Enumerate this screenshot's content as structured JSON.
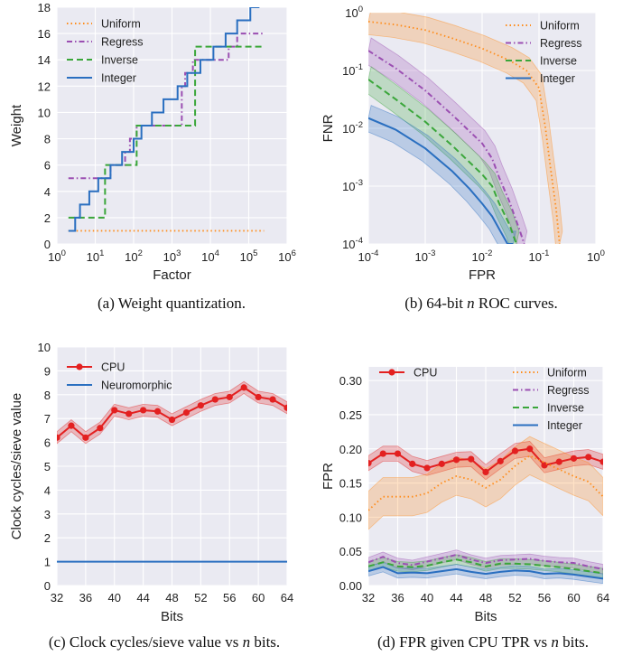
{
  "colors": {
    "uniform": "#ff8c1a",
    "regress": "#9b4fb2",
    "inverse": "#3aa63a",
    "integer": "#2a6fc0",
    "cpu": "#e32020",
    "neuromorphic": "#2a6fc0"
  },
  "chart_data": [
    {
      "id": "a",
      "type": "line",
      "caption": "(a) Weight quantization.",
      "xlabel": "Factor",
      "ylabel": "Weight",
      "xscale": "log",
      "xlim": [
        1,
        1000000
      ],
      "ylim": [
        0,
        18
      ],
      "xticks": [
        1,
        10,
        100,
        1000,
        10000,
        100000,
        1000000
      ],
      "xtick_labels": [
        {
          "b": "10",
          "e": "0"
        },
        {
          "b": "10",
          "e": "1"
        },
        {
          "b": "10",
          "e": "2"
        },
        {
          "b": "10",
          "e": "3"
        },
        {
          "b": "10",
          "e": "4"
        },
        {
          "b": "10",
          "e": "5"
        },
        {
          "b": "10",
          "e": "6"
        }
      ],
      "yticks": [
        0,
        2,
        4,
        6,
        8,
        10,
        12,
        14,
        16,
        18
      ],
      "ytick_labels": [
        "0",
        "2",
        "4",
        "6",
        "8",
        "10",
        "12",
        "14",
        "16",
        "18"
      ],
      "legend_position": "top-left",
      "series": [
        {
          "name": "Uniform",
          "style": "dotted",
          "steps": [
            [
              2,
              1
            ],
            [
              250000,
              1
            ]
          ]
        },
        {
          "name": "Regress",
          "style": "dashdot",
          "steps": [
            [
              2,
              5
            ],
            [
              20,
              5
            ],
            [
              25,
              6
            ],
            [
              50,
              6
            ],
            [
              60,
              7
            ],
            [
              70,
              7
            ],
            [
              80,
              8
            ],
            [
              100,
              8
            ],
            [
              120,
              9
            ],
            [
              150,
              9
            ],
            [
              200,
              9
            ],
            [
              300,
              9
            ],
            [
              1500,
              9
            ],
            [
              1800,
              12
            ],
            [
              2200,
              13
            ],
            [
              3000,
              13
            ],
            [
              3500,
              14
            ],
            [
              5000,
              14
            ],
            [
              8000,
              14
            ],
            [
              15000,
              14
            ],
            [
              30000,
              15
            ],
            [
              40000,
              15
            ],
            [
              50000,
              16
            ],
            [
              250000,
              16
            ]
          ]
        },
        {
          "name": "Inverse",
          "style": "dashed",
          "steps": [
            [
              2,
              2
            ],
            [
              15,
              2
            ],
            [
              18,
              6
            ],
            [
              30,
              6
            ],
            [
              100,
              6
            ],
            [
              120,
              9
            ],
            [
              300,
              9
            ],
            [
              1000,
              9
            ],
            [
              2500,
              9
            ],
            [
              4000,
              15
            ],
            [
              10000,
              15
            ],
            [
              250000,
              15
            ]
          ]
        },
        {
          "name": "Integer",
          "style": "solid",
          "steps": [
            [
              2,
              1
            ],
            [
              3,
              2
            ],
            [
              4,
              3
            ],
            [
              6,
              3
            ],
            [
              7,
              4
            ],
            [
              10,
              4
            ],
            [
              12,
              5
            ],
            [
              20,
              5
            ],
            [
              25,
              6
            ],
            [
              45,
              6
            ],
            [
              50,
              7
            ],
            [
              80,
              7
            ],
            [
              100,
              8
            ],
            [
              130,
              8
            ],
            [
              160,
              9
            ],
            [
              250,
              9
            ],
            [
              300,
              10
            ],
            [
              400,
              10
            ],
            [
              600,
              11
            ],
            [
              1000,
              11
            ],
            [
              1400,
              12
            ],
            [
              2000,
              12
            ],
            [
              2500,
              13
            ],
            [
              4000,
              13
            ],
            [
              5500,
              14
            ],
            [
              9000,
              14
            ],
            [
              12000,
              15
            ],
            [
              20000,
              15
            ],
            [
              25000,
              16
            ],
            [
              40000,
              16
            ],
            [
              50000,
              17
            ],
            [
              90000,
              17
            ],
            [
              110000,
              18
            ],
            [
              150000,
              18
            ],
            [
              190000,
              18
            ]
          ]
        }
      ]
    },
    {
      "id": "b",
      "type": "line",
      "caption": "(b) 64-bit n ROC curves.",
      "xlabel": "FPR",
      "ylabel": "FNR",
      "xscale": "log",
      "yscale": "log",
      "xlim": [
        0.0001,
        1
      ],
      "ylim": [
        0.0001,
        1
      ],
      "xticks": [
        0.0001,
        0.001,
        0.01,
        0.1,
        1
      ],
      "xtick_labels": [
        {
          "b": "10",
          "e": "-4"
        },
        {
          "b": "10",
          "e": "-3"
        },
        {
          "b": "10",
          "e": "-2"
        },
        {
          "b": "10",
          "e": "-1"
        },
        {
          "b": "10",
          "e": "0"
        }
      ],
      "yticks": [
        0.0001,
        0.001,
        0.01,
        0.1,
        1
      ],
      "ytick_labels": [
        {
          "b": "10",
          "e": "-4"
        },
        {
          "b": "10",
          "e": "-3"
        },
        {
          "b": "10",
          "e": "-2"
        },
        {
          "b": "10",
          "e": "-1"
        },
        {
          "b": "10",
          "e": "0"
        }
      ],
      "legend_position": "top-right",
      "series": [
        {
          "name": "Uniform",
          "style": "dotted",
          "band": true,
          "x": [
            0.0001,
            0.0003,
            0.001,
            0.003,
            0.01,
            0.03,
            0.06,
            0.1,
            0.13,
            0.16,
            0.2,
            0.23
          ],
          "y": [
            0.7,
            0.62,
            0.5,
            0.36,
            0.24,
            0.15,
            0.1,
            0.05,
            0.01,
            0.002,
            0.0004,
            0.0001
          ]
        },
        {
          "name": "Regress",
          "style": "dashdot",
          "band": true,
          "x": [
            0.0001,
            0.0003,
            0.001,
            0.003,
            0.01,
            0.015,
            0.02,
            0.03,
            0.045,
            0.055
          ],
          "y": [
            0.22,
            0.11,
            0.045,
            0.017,
            0.0055,
            0.003,
            0.0014,
            0.00055,
            0.00018,
            0.0001
          ]
        },
        {
          "name": "Inverse",
          "style": "dashed",
          "band": true,
          "x": [
            0.0001,
            0.0003,
            0.001,
            0.003,
            0.01,
            0.015,
            0.02,
            0.03,
            0.04
          ],
          "y": [
            0.07,
            0.032,
            0.013,
            0.005,
            0.0016,
            0.001,
            0.0005,
            0.00022,
            0.0001
          ]
        },
        {
          "name": "Integer",
          "style": "solid",
          "band": true,
          "x": [
            0.0001,
            0.0003,
            0.001,
            0.003,
            0.006,
            0.01,
            0.015,
            0.02,
            0.028,
            0.035
          ],
          "y": [
            0.015,
            0.0095,
            0.0045,
            0.0018,
            0.0009,
            0.0005,
            0.0003,
            0.00018,
            0.0001,
            0.0001
          ]
        }
      ]
    },
    {
      "id": "c",
      "type": "line",
      "caption": "(c) Clock cycles/sieve value vs n bits.",
      "xlabel": "Bits",
      "ylabel": "Clock cycles/sieve value",
      "xlim": [
        32,
        64
      ],
      "ylim": [
        0,
        10
      ],
      "xticks": [
        32,
        36,
        40,
        44,
        48,
        52,
        56,
        60,
        64
      ],
      "xtick_labels": [
        "32",
        "36",
        "40",
        "44",
        "48",
        "52",
        "56",
        "60",
        "64"
      ],
      "yticks": [
        0,
        1,
        2,
        3,
        4,
        5,
        6,
        7,
        8,
        9,
        10
      ],
      "ytick_labels": [
        "0",
        "1",
        "2",
        "3",
        "4",
        "5",
        "6",
        "7",
        "8",
        "9",
        "10"
      ],
      "legend_position": "top-left",
      "series": [
        {
          "name": "CPU",
          "style": "markers",
          "band": true,
          "x": [
            32,
            34,
            36,
            38,
            40,
            42,
            44,
            46,
            48,
            50,
            52,
            54,
            56,
            58,
            60,
            62,
            64
          ],
          "y": [
            6.2,
            6.7,
            6.2,
            6.6,
            7.35,
            7.2,
            7.35,
            7.3,
            6.95,
            7.25,
            7.55,
            7.8,
            7.9,
            8.3,
            7.9,
            7.8,
            7.45
          ]
        },
        {
          "name": "Neuromorphic",
          "style": "solid",
          "x": [
            32,
            64
          ],
          "y": [
            1,
            1
          ]
        }
      ]
    },
    {
      "id": "d",
      "type": "line",
      "caption": "(d) FPR given CPU TPR vs n bits.",
      "xlabel": "Bits",
      "ylabel": "FPR",
      "xlim": [
        32,
        64
      ],
      "ylim": [
        0,
        0.32
      ],
      "xticks": [
        32,
        36,
        40,
        44,
        48,
        52,
        56,
        60,
        64
      ],
      "xtick_labels": [
        "32",
        "36",
        "40",
        "44",
        "48",
        "52",
        "56",
        "60",
        "64"
      ],
      "yticks": [
        0,
        0.05,
        0.1,
        0.15,
        0.2,
        0.25,
        0.3
      ],
      "ytick_labels": [
        "0.00",
        "0.05",
        "0.10",
        "0.15",
        "0.20",
        "0.25",
        "0.30"
      ],
      "legend_position": "top",
      "series": [
        {
          "name": "CPU",
          "style": "markers",
          "band": true,
          "x": [
            32,
            34,
            36,
            38,
            40,
            42,
            44,
            46,
            48,
            50,
            52,
            54,
            56,
            58,
            60,
            62,
            64
          ],
          "y": [
            0.179,
            0.193,
            0.193,
            0.178,
            0.172,
            0.178,
            0.184,
            0.185,
            0.166,
            0.182,
            0.197,
            0.2,
            0.176,
            0.181,
            0.186,
            0.188,
            0.181
          ]
        },
        {
          "name": "Uniform",
          "style": "dotted",
          "band": true,
          "x": [
            32,
            34,
            36,
            38,
            40,
            42,
            44,
            46,
            48,
            50,
            52,
            54,
            56,
            58,
            60,
            62,
            64
          ],
          "y": [
            0.11,
            0.13,
            0.13,
            0.13,
            0.135,
            0.15,
            0.16,
            0.155,
            0.143,
            0.155,
            0.175,
            0.19,
            0.18,
            0.17,
            0.16,
            0.152,
            0.13
          ]
        },
        {
          "name": "Regress",
          "style": "dashdot",
          "band": true,
          "x": [
            32,
            34,
            36,
            38,
            40,
            42,
            44,
            46,
            48,
            50,
            52,
            54,
            56,
            58,
            60,
            62,
            64
          ],
          "y": [
            0.034,
            0.042,
            0.033,
            0.03,
            0.035,
            0.04,
            0.045,
            0.038,
            0.033,
            0.037,
            0.038,
            0.039,
            0.036,
            0.034,
            0.033,
            0.028,
            0.024
          ]
        },
        {
          "name": "Inverse",
          "style": "dashed",
          "band": true,
          "x": [
            32,
            34,
            36,
            38,
            40,
            42,
            44,
            46,
            48,
            50,
            52,
            54,
            56,
            58,
            60,
            62,
            64
          ],
          "y": [
            0.028,
            0.034,
            0.028,
            0.027,
            0.029,
            0.034,
            0.038,
            0.034,
            0.028,
            0.032,
            0.032,
            0.031,
            0.029,
            0.027,
            0.024,
            0.021,
            0.018
          ]
        },
        {
          "name": "Integer",
          "style": "solid",
          "band": true,
          "x": [
            32,
            34,
            36,
            38,
            40,
            42,
            44,
            46,
            48,
            50,
            52,
            54,
            56,
            58,
            60,
            62,
            64
          ],
          "y": [
            0.021,
            0.027,
            0.018,
            0.019,
            0.018,
            0.021,
            0.024,
            0.02,
            0.017,
            0.02,
            0.022,
            0.021,
            0.017,
            0.018,
            0.016,
            0.013,
            0.01
          ]
        }
      ]
    }
  ]
}
